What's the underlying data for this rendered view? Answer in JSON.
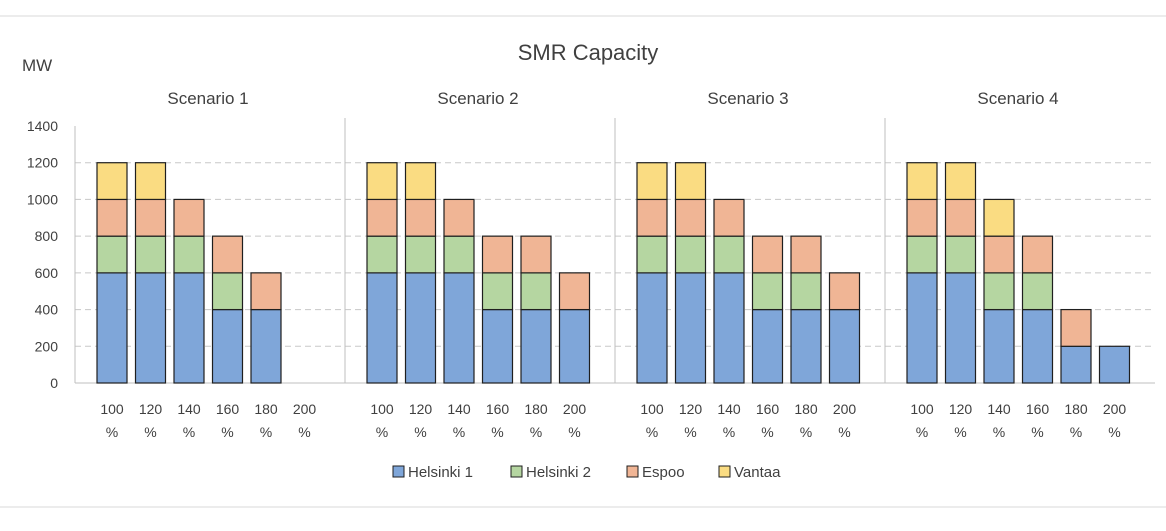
{
  "chart_data": {
    "type": "bar",
    "stacked": true,
    "title": "SMR Capacity",
    "ylabel": "MW",
    "ylim": [
      0,
      1400
    ],
    "yticks": [
      0,
      200,
      400,
      600,
      800,
      1000,
      1200,
      1400
    ],
    "grid": true,
    "legend_position": "bottom",
    "categories": [
      "100 %",
      "120 %",
      "140 %",
      "160 %",
      "180 %",
      "200 %"
    ],
    "series": [
      {
        "name": "Helsinki 1",
        "color": "#7FA6D9"
      },
      {
        "name": "Helsinki 2",
        "color": "#B5D6A1"
      },
      {
        "name": "Espoo",
        "color": "#F0B595"
      },
      {
        "name": "Vantaa",
        "color": "#FADC82"
      }
    ],
    "panels": [
      {
        "name": "Scenario 1",
        "values": [
          [
            600,
            600,
            600,
            400,
            400,
            0
          ],
          [
            200,
            200,
            200,
            200,
            0,
            0
          ],
          [
            200,
            200,
            200,
            200,
            200,
            0
          ],
          [
            200,
            200,
            0,
            0,
            0,
            0
          ]
        ]
      },
      {
        "name": "Scenario 2",
        "values": [
          [
            600,
            600,
            600,
            400,
            400,
            400
          ],
          [
            200,
            200,
            200,
            200,
            200,
            0
          ],
          [
            200,
            200,
            200,
            200,
            200,
            200
          ],
          [
            200,
            200,
            0,
            0,
            0,
            0
          ]
        ]
      },
      {
        "name": "Scenario 3",
        "values": [
          [
            600,
            600,
            600,
            400,
            400,
            400
          ],
          [
            200,
            200,
            200,
            200,
            200,
            0
          ],
          [
            200,
            200,
            200,
            200,
            200,
            200
          ],
          [
            200,
            200,
            0,
            0,
            0,
            0
          ]
        ]
      },
      {
        "name": "Scenario 4",
        "values": [
          [
            600,
            600,
            400,
            400,
            200,
            200
          ],
          [
            200,
            200,
            200,
            200,
            0,
            0
          ],
          [
            200,
            200,
            200,
            200,
            200,
            0
          ],
          [
            200,
            200,
            200,
            0,
            0,
            0
          ]
        ]
      }
    ]
  }
}
